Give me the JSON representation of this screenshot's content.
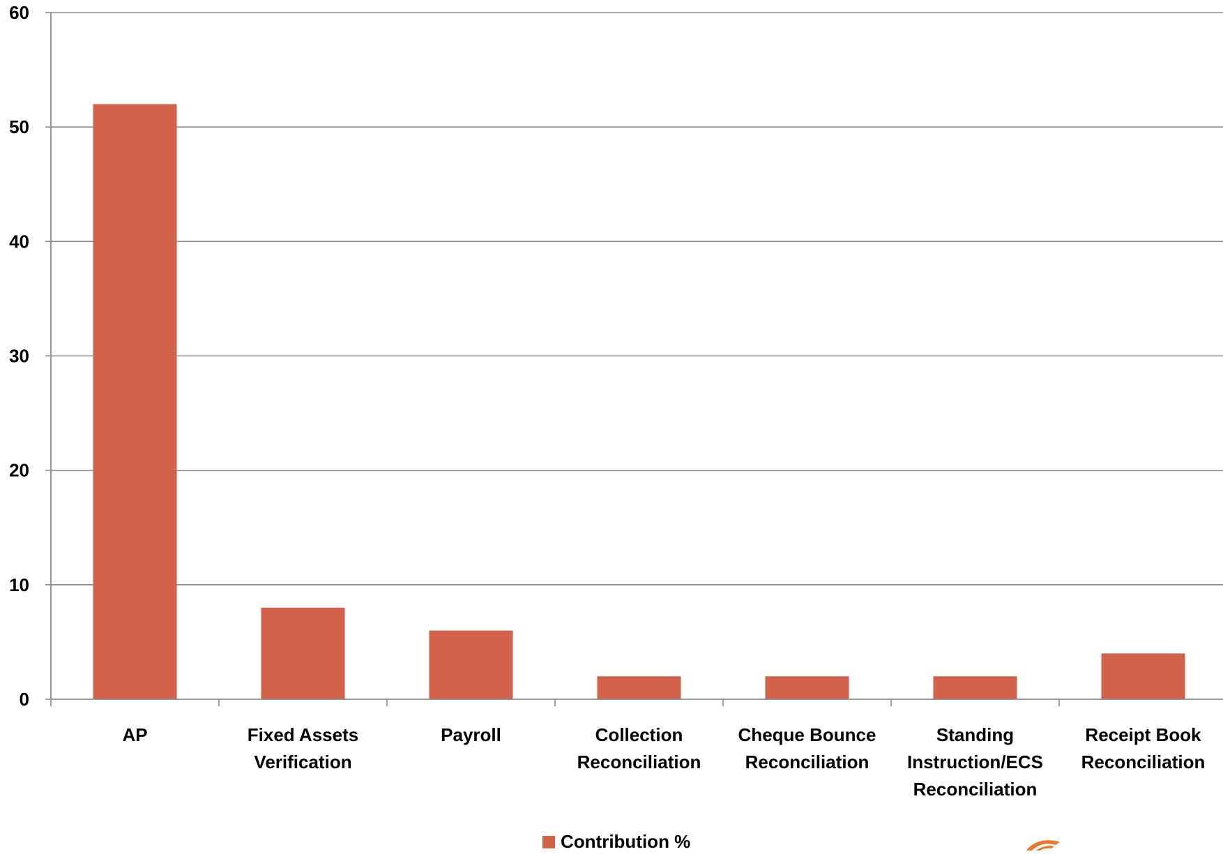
{
  "chart_data": {
    "type": "bar",
    "title": "",
    "xlabel": "",
    "ylabel": "",
    "ylim": [
      0,
      60
    ],
    "yticks": [
      "0",
      "10",
      "20",
      "30",
      "40",
      "50",
      "60"
    ],
    "grid": true,
    "legend_position": "bottom",
    "categories": [
      [
        "AP"
      ],
      [
        "Fixed Assets",
        "Verification"
      ],
      [
        "Payroll"
      ],
      [
        "Collection",
        "Reconciliation"
      ],
      [
        "Cheque Bounce",
        "Reconciliation"
      ],
      [
        "Standing",
        "Instruction/ECS",
        "Reconciliation"
      ],
      [
        "Receipt Book",
        "Reconciliation"
      ]
    ],
    "series": [
      {
        "name": "Contribution %",
        "color": "#d2624a",
        "values": [
          52,
          8,
          6,
          2,
          2,
          2,
          4
        ]
      }
    ]
  },
  "legend": {
    "label": "Contribution %"
  },
  "colors": {
    "bar": "#d2624a",
    "grid": "#8c8c8c",
    "axis": "#8c8c8c",
    "logo": "#e8772e"
  }
}
